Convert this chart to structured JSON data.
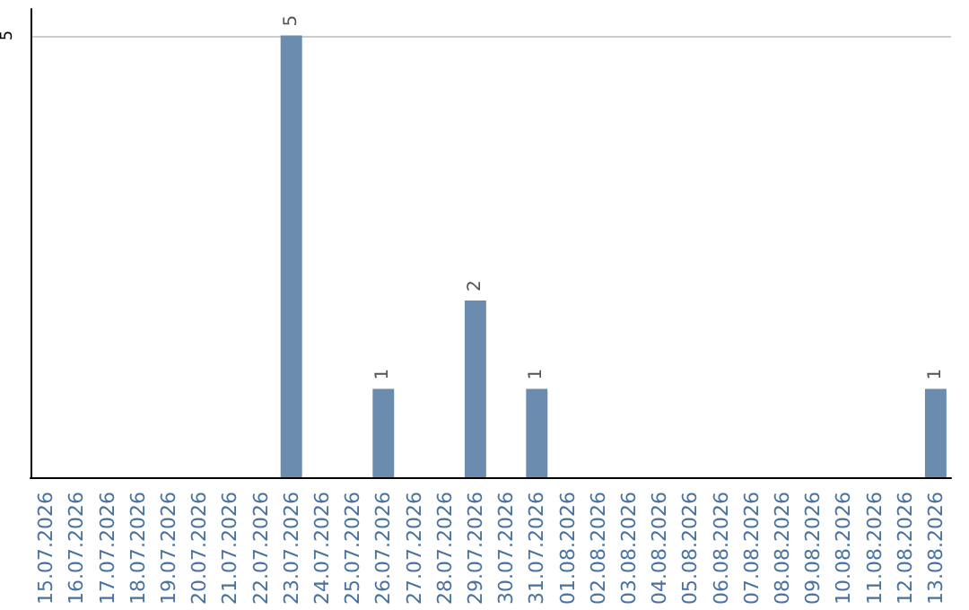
{
  "chart_data": {
    "type": "bar",
    "categories": [
      "15.07.2026",
      "16.07.2026",
      "17.07.2026",
      "18.07.2026",
      "19.07.2026",
      "20.07.2026",
      "21.07.2026",
      "22.07.2026",
      "23.07.2026",
      "24.07.2026",
      "25.07.2026",
      "26.07.2026",
      "27.07.2026",
      "28.07.2026",
      "29.07.2026",
      "30.07.2026",
      "31.07.2026",
      "01.08.2026",
      "02.08.2026",
      "03.08.2026",
      "04.08.2026",
      "05.08.2026",
      "06.08.2026",
      "07.08.2026",
      "08.08.2026",
      "09.08.2026",
      "10.08.2026",
      "11.08.2026",
      "12.08.2026",
      "13.08.2026"
    ],
    "values": [
      0,
      0,
      0,
      0,
      0,
      0,
      0,
      0,
      5,
      0,
      0,
      1,
      0,
      0,
      2,
      0,
      1,
      0,
      0,
      0,
      0,
      0,
      0,
      0,
      0,
      0,
      0,
      0,
      0,
      1
    ],
    "value_labels": [
      null,
      null,
      null,
      null,
      null,
      null,
      null,
      null,
      "5",
      null,
      null,
      "1",
      null,
      null,
      "2",
      null,
      "1",
      null,
      null,
      null,
      null,
      null,
      null,
      null,
      null,
      null,
      null,
      null,
      null,
      "1"
    ],
    "color": "#6b8cae",
    "ylim": [
      0,
      5.3
    ],
    "yticks": [
      5
    ],
    "grid": "y"
  }
}
